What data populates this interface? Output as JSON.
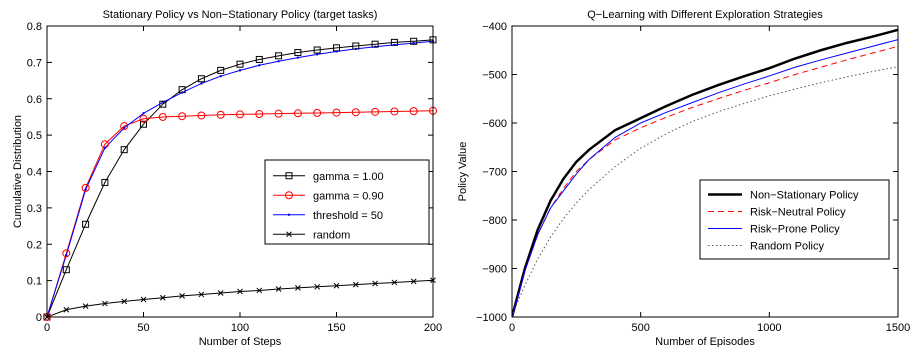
{
  "chart_data": [
    {
      "type": "line",
      "title": "Stationary Policy vs Non−Stationary Policy (target tasks)",
      "xlabel": "Number of Steps",
      "ylabel": "Cumulative Distribution",
      "xlim": [
        0,
        200
      ],
      "ylim": [
        0,
        0.8
      ],
      "xticks": [
        0,
        50,
        100,
        150,
        200
      ],
      "yticks": [
        0,
        0.1,
        0.2,
        0.3,
        0.4,
        0.5,
        0.6,
        0.7,
        0.8
      ],
      "xtick_labels": [
        "0",
        "50",
        "100",
        "150",
        "200"
      ],
      "ytick_labels": [
        "0",
        "0.1",
        "0.2",
        "0.3",
        "0.4",
        "0.5",
        "0.6",
        "0.7",
        "0.8"
      ],
      "grid": false,
      "legend_position": "center-right",
      "series": [
        {
          "name": "gamma = 1.00",
          "color": "#000000",
          "marker": "square",
          "x": [
            0,
            10,
            20,
            30,
            40,
            50,
            60,
            70,
            80,
            90,
            100,
            110,
            120,
            130,
            140,
            150,
            160,
            170,
            180,
            190,
            200
          ],
          "y": [
            0,
            0.13,
            0.255,
            0.37,
            0.46,
            0.53,
            0.585,
            0.625,
            0.655,
            0.678,
            0.695,
            0.708,
            0.718,
            0.727,
            0.734,
            0.74,
            0.745,
            0.75,
            0.755,
            0.758,
            0.762
          ]
        },
        {
          "name": "gamma = 0.90",
          "color": "#ff0000",
          "marker": "circle",
          "x": [
            0,
            10,
            20,
            30,
            40,
            50,
            60,
            70,
            80,
            90,
            100,
            110,
            120,
            130,
            140,
            150,
            160,
            170,
            180,
            190,
            200
          ],
          "y": [
            0,
            0.175,
            0.355,
            0.475,
            0.525,
            0.545,
            0.55,
            0.552,
            0.554,
            0.556,
            0.557,
            0.558,
            0.559,
            0.56,
            0.561,
            0.562,
            0.563,
            0.564,
            0.565,
            0.566,
            0.567
          ]
        },
        {
          "name": "threshold = 50",
          "color": "#0000ff",
          "marker": "dot",
          "x": [
            0,
            10,
            20,
            30,
            40,
            50,
            60,
            70,
            80,
            90,
            100,
            110,
            120,
            130,
            140,
            150,
            160,
            170,
            180,
            190,
            200
          ],
          "y": [
            0,
            0.17,
            0.35,
            0.465,
            0.52,
            0.56,
            0.59,
            0.617,
            0.642,
            0.662,
            0.678,
            0.692,
            0.703,
            0.713,
            0.722,
            0.73,
            0.737,
            0.743,
            0.748,
            0.753,
            0.758
          ]
        },
        {
          "name": "random",
          "color": "#000000",
          "marker": "x",
          "x": [
            0,
            10,
            20,
            30,
            40,
            50,
            60,
            70,
            80,
            90,
            100,
            110,
            120,
            130,
            140,
            150,
            160,
            170,
            180,
            190,
            200
          ],
          "y": [
            0,
            0.02,
            0.03,
            0.037,
            0.043,
            0.048,
            0.053,
            0.058,
            0.062,
            0.066,
            0.07,
            0.073,
            0.077,
            0.08,
            0.083,
            0.086,
            0.089,
            0.092,
            0.095,
            0.098,
            0.101
          ]
        }
      ]
    },
    {
      "type": "line",
      "title": "Q−Learning with Different Exploration Strategies",
      "xlabel": "Number of Episodes",
      "ylabel": "Policy Value",
      "xlim": [
        0,
        1500
      ],
      "ylim": [
        -1000,
        -400
      ],
      "xticks": [
        0,
        500,
        1000,
        1500
      ],
      "yticks": [
        -1000,
        -900,
        -800,
        -700,
        -600,
        -500,
        -400
      ],
      "xtick_labels": [
        "0",
        "500",
        "1000",
        "1500"
      ],
      "ytick_labels": [
        "−1000",
        "−900",
        "−800",
        "−700",
        "−600",
        "−500",
        "−400"
      ],
      "grid": false,
      "legend_position": "lower-right",
      "series": [
        {
          "name": "Non−Stationary Policy",
          "color": "#000000",
          "style": "solid-thick",
          "x": [
            0,
            25,
            50,
            100,
            150,
            200,
            250,
            300,
            400,
            500,
            600,
            700,
            800,
            900,
            1000,
            1100,
            1200,
            1300,
            1400,
            1500
          ],
          "y": [
            -1000,
            -950,
            -900,
            -820,
            -760,
            -715,
            -680,
            -655,
            -615,
            -590,
            -565,
            -542,
            -522,
            -504,
            -487,
            -467,
            -450,
            -435,
            -422,
            -408
          ]
        },
        {
          "name": "Risk−Neutral Policy",
          "color": "#ff0000",
          "style": "dashed",
          "x": [
            0,
            25,
            50,
            100,
            150,
            200,
            250,
            300,
            400,
            500,
            600,
            700,
            800,
            900,
            1000,
            1100,
            1200,
            1300,
            1400,
            1500
          ],
          "y": [
            -1000,
            -955,
            -905,
            -830,
            -775,
            -735,
            -700,
            -675,
            -635,
            -610,
            -588,
            -568,
            -550,
            -533,
            -517,
            -500,
            -485,
            -470,
            -456,
            -442
          ]
        },
        {
          "name": "Risk−Prone Policy",
          "color": "#0000ff",
          "style": "solid",
          "x": [
            0,
            25,
            50,
            100,
            150,
            200,
            250,
            300,
            400,
            500,
            600,
            700,
            800,
            900,
            1000,
            1100,
            1200,
            1300,
            1400,
            1500
          ],
          "y": [
            -1000,
            -955,
            -905,
            -830,
            -775,
            -740,
            -705,
            -675,
            -630,
            -600,
            -578,
            -558,
            -538,
            -520,
            -503,
            -485,
            -470,
            -456,
            -442,
            -428
          ]
        },
        {
          "name": "Random Policy",
          "color": "#555555",
          "style": "dotted",
          "x": [
            0,
            25,
            50,
            100,
            150,
            200,
            250,
            300,
            400,
            500,
            600,
            700,
            800,
            900,
            1000,
            1100,
            1200,
            1300,
            1400,
            1500
          ],
          "y": [
            -1000,
            -965,
            -935,
            -880,
            -835,
            -797,
            -765,
            -737,
            -690,
            -652,
            -622,
            -597,
            -577,
            -560,
            -544,
            -530,
            -517,
            -505,
            -494,
            -484
          ]
        }
      ]
    }
  ]
}
